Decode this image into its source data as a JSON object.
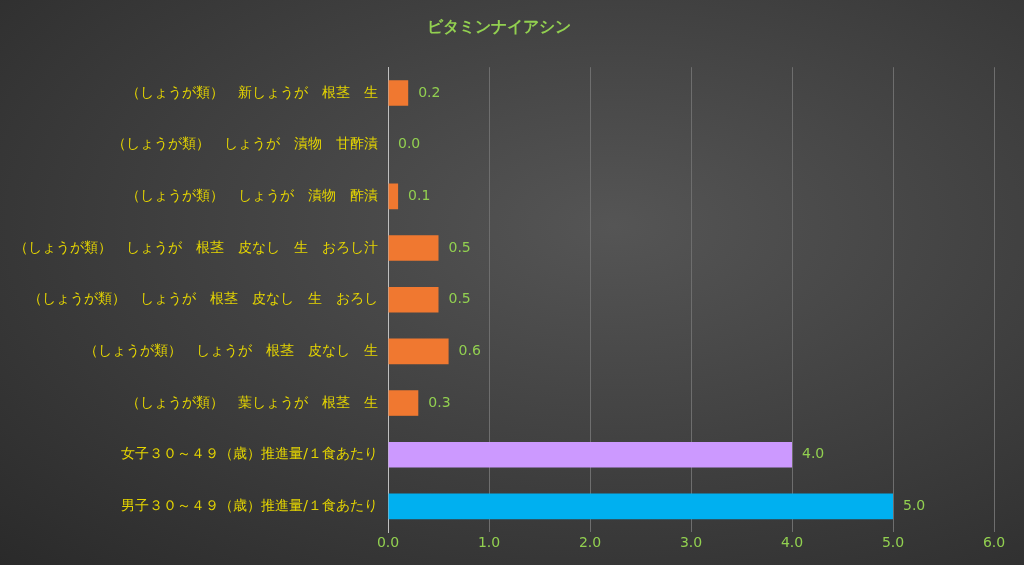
{
  "chart_data": {
    "type": "bar",
    "orientation": "horizontal",
    "title": "ビタミンナイアシン",
    "categories": [
      "（しょうが類）　新しょうが　根茎　生",
      "（しょうが類）　しょうが　漬物　甘酢漬",
      "（しょうが類）　しょうが　漬物　酢漬",
      "（しょうが類）　しょうが　根茎　皮なし　生　おろし汁",
      "（しょうが類）　しょうが　根茎　皮なし　生　おろし",
      "（しょうが類）　しょうが　根茎　皮なし　生",
      "（しょうが類）　葉しょうが　根茎　生",
      "女子３０～４９（歳）推進量/１食あたり",
      "男子３０～４９（歳）推進量/１食あたり"
    ],
    "values": [
      0.2,
      0.0,
      0.1,
      0.5,
      0.5,
      0.6,
      0.3,
      4.0,
      5.0
    ],
    "value_labels": [
      "0.2",
      "0.0",
      "0.1",
      "0.5",
      "0.5",
      "0.6",
      "0.3",
      "4.0",
      "5.0"
    ],
    "colors": [
      "#f07830",
      "#f07830",
      "#f07830",
      "#f07830",
      "#f07830",
      "#f07830",
      "#f07830",
      "#cc99ff",
      "#00b0f0"
    ],
    "xlim": [
      0,
      6
    ],
    "xticks": [
      {
        "value": 0,
        "label": "0.0"
      },
      {
        "value": 1,
        "label": "1.0"
      },
      {
        "value": 2,
        "label": "2.0"
      },
      {
        "value": 3,
        "label": "3.0"
      },
      {
        "value": 4,
        "label": "4.0"
      },
      {
        "value": 5,
        "label": "5.0"
      },
      {
        "value": 6,
        "label": "6.0"
      }
    ],
    "grid": "x",
    "legend": false
  }
}
